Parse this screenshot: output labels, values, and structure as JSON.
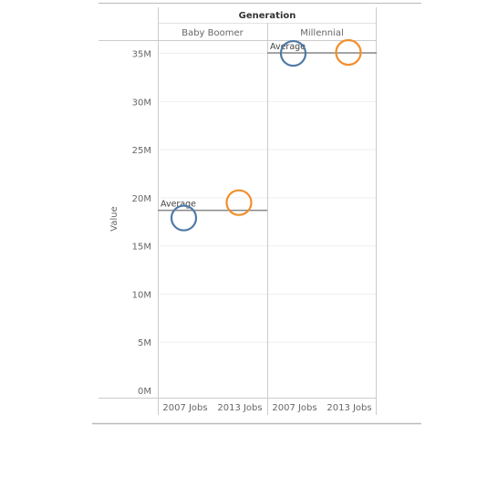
{
  "chart_data": {
    "type": "scatter",
    "column_header": "Generation",
    "panels": [
      "Baby Boomer",
      "Millennial"
    ],
    "categories": [
      "2007 Jobs",
      "2013 Jobs"
    ],
    "ylabel": "Value",
    "ylim": [
      0,
      36000000
    ],
    "yticks": [
      "0M",
      "5M",
      "10M",
      "15M",
      "20M",
      "25M",
      "30M",
      "35M"
    ],
    "yticks_values": [
      0,
      5000000,
      10000000,
      15000000,
      20000000,
      25000000,
      30000000,
      35000000
    ],
    "grid": true,
    "reference_line_label": "Average",
    "series": [
      {
        "panel": "Baby Boomer",
        "category": "2007 Jobs",
        "value": 17900000,
        "color": "#4e79a7"
      },
      {
        "panel": "Baby Boomer",
        "category": "2013 Jobs",
        "value": 19500000,
        "color": "#f28e2b"
      },
      {
        "panel": "Millennial",
        "category": "2007 Jobs",
        "value": 35000000,
        "color": "#4e79a7"
      },
      {
        "panel": "Millennial",
        "category": "2013 Jobs",
        "value": 35100000,
        "color": "#f28e2b"
      }
    ],
    "averages": [
      {
        "panel": "Baby Boomer",
        "value": 18700000
      },
      {
        "panel": "Millennial",
        "value": 35050000
      }
    ]
  }
}
